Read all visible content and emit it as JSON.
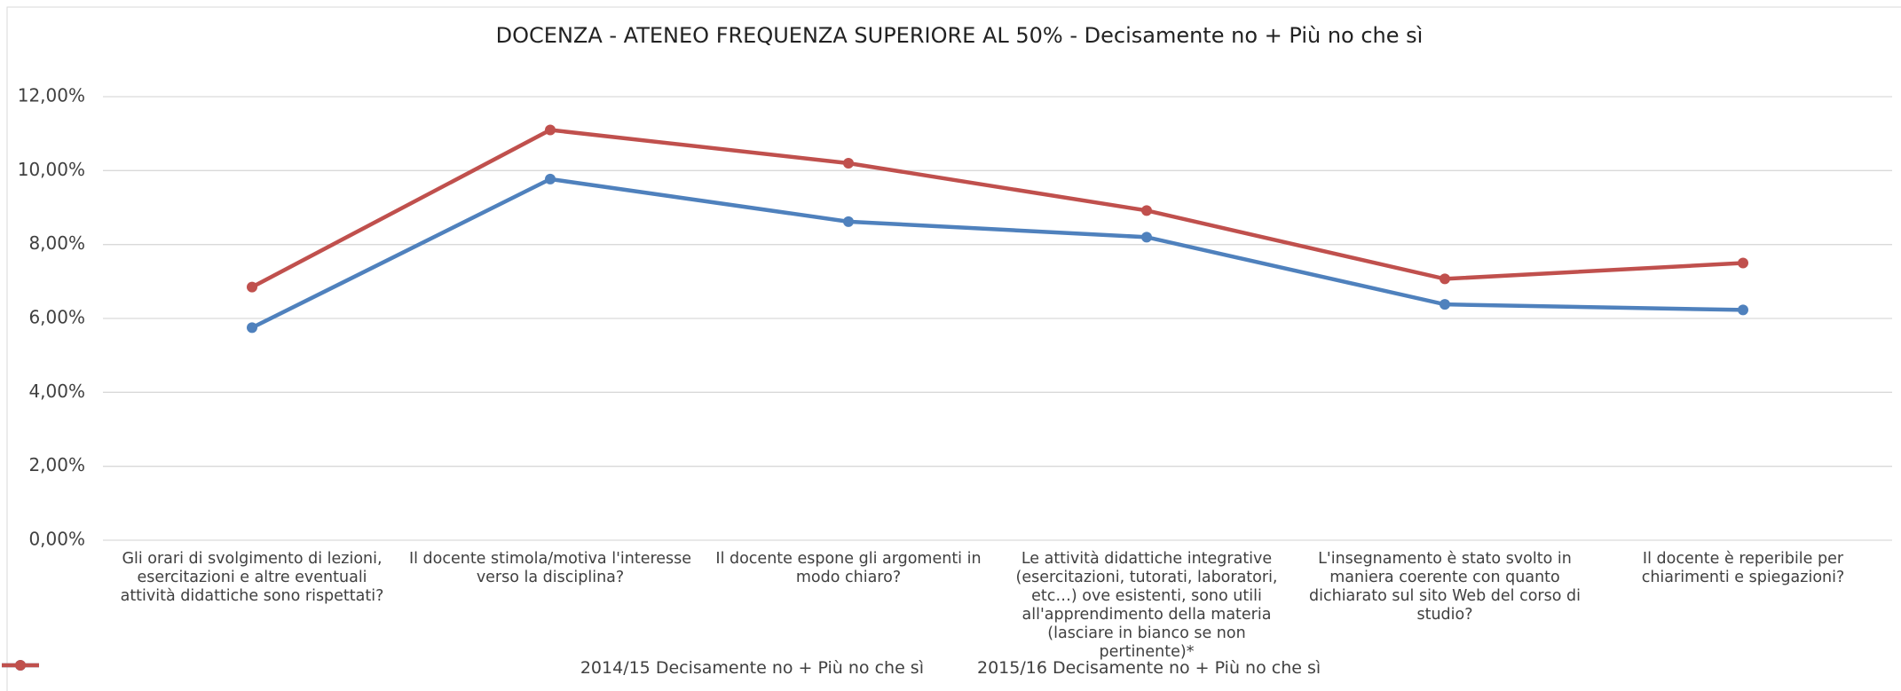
{
  "chart_data": {
    "type": "line",
    "title": "DOCENZA - ATENEO FREQUENZA SUPERIORE AL 50% - Decisamente no + Più no che sì",
    "categories": [
      "Gli orari di svolgimento di lezioni, esercitazioni e altre eventuali attività didattiche sono rispettati?",
      "Il docente stimola/motiva l'interesse verso la disciplina?",
      "Il docente espone gli argomenti in modo chiaro?",
      "Le attività didattiche integrative (esercitazioni, tutorati, laboratori, etc…) ove esistenti, sono utili all'apprendimento della materia (lasciare in bianco se non pertinente)*",
      "L'insegnamento è stato svolto in maniera coerente con quanto dichiarato sul sito Web del corso di studio?",
      "Il docente è reperibile per chiarimenti e spiegazioni?"
    ],
    "series": [
      {
        "name": "2014/15 Decisamente no + Più no che sì",
        "color": "#4f81bd",
        "values": [
          5.75,
          9.77,
          8.62,
          8.2,
          6.38,
          6.23
        ]
      },
      {
        "name": "2015/16 Decisamente no + Più no che sì",
        "color": "#c0504d",
        "values": [
          6.85,
          11.1,
          10.2,
          8.92,
          7.07,
          7.5
        ]
      }
    ],
    "ylim": [
      0,
      12
    ],
    "yticks": [
      {
        "value": 0,
        "label": "0,00%"
      },
      {
        "value": 2,
        "label": "2,00%"
      },
      {
        "value": 4,
        "label": "4,00%"
      },
      {
        "value": 6,
        "label": "6,00%"
      },
      {
        "value": 8,
        "label": "8,00%"
      },
      {
        "value": 10,
        "label": "10,00%"
      },
      {
        "value": 12,
        "label": "12,00%"
      }
    ],
    "grid": true,
    "legend": "bottom"
  }
}
